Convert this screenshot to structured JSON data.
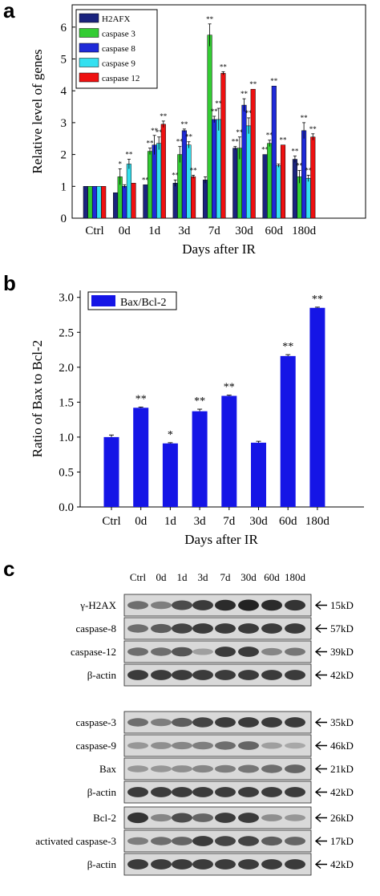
{
  "panel_labels": {
    "a": "a",
    "b": "b",
    "c": "c"
  },
  "chart_data": [
    {
      "type": "bar",
      "xlabel": "Days after IR",
      "ylabel": "Relative level of genes",
      "categories": [
        "Ctrl",
        "0d",
        "1d",
        "3d",
        "7d",
        "30d",
        "60d",
        "180d"
      ],
      "ylim": [
        0,
        6.7
      ],
      "yticks": [
        0,
        1,
        2,
        3,
        4,
        5,
        6
      ],
      "legend_position": "top-left",
      "series": [
        {
          "name": "H2AFX",
          "color": "#1a237e",
          "values": [
            1.0,
            0.8,
            1.05,
            1.1,
            1.2,
            2.2,
            2.0,
            1.85
          ],
          "errors": [
            0,
            0,
            0,
            0.1,
            0.1,
            0.05,
            0,
            0.1
          ],
          "sig": [
            "",
            "",
            "**",
            "**",
            "",
            "**",
            "**",
            "**"
          ]
        },
        {
          "name": "caspase 3",
          "color": "#33cc33",
          "values": [
            1.0,
            1.3,
            2.1,
            2.0,
            5.75,
            2.2,
            2.35,
            1.3
          ],
          "errors": [
            0,
            0.25,
            0.1,
            0.25,
            0.35,
            0.35,
            0.1,
            0.2
          ],
          "sig": [
            "",
            "*",
            "**",
            "**",
            "**",
            "**",
            "**",
            "**"
          ]
        },
        {
          "name": "caspase 8",
          "color": "#1f2ad8",
          "values": [
            1.0,
            1.0,
            2.3,
            2.75,
            3.1,
            3.55,
            4.15,
            2.75
          ],
          "errors": [
            0,
            0.05,
            0.3,
            0.05,
            0.1,
            0.2,
            0,
            0.25
          ],
          "sig": [
            "",
            "",
            "**",
            "**",
            "**",
            "**",
            "**",
            "**"
          ]
        },
        {
          "name": "caspase 9",
          "color": "#33e0f0",
          "values": [
            1.0,
            1.7,
            2.35,
            2.3,
            3.1,
            2.9,
            1.65,
            1.25
          ],
          "errors": [
            0,
            0.15,
            0.2,
            0.1,
            0.35,
            0.25,
            0.05,
            0.1
          ],
          "sig": [
            "",
            "**",
            "**",
            "**",
            "**",
            "**",
            "",
            "**"
          ]
        },
        {
          "name": "caspase 12",
          "color": "#ee1111",
          "values": [
            1.0,
            1.1,
            2.95,
            1.3,
            4.55,
            4.05,
            2.3,
            2.55
          ],
          "errors": [
            0,
            0,
            0.1,
            0.05,
            0.05,
            0,
            0,
            0.1
          ],
          "sig": [
            "",
            "",
            "**",
            "**",
            "**",
            "**",
            "**",
            "**"
          ]
        }
      ]
    },
    {
      "type": "bar",
      "xlabel": "Days after IR",
      "ylabel": "Ratio of Bax to Bcl-2",
      "categories": [
        "Ctrl",
        "0d",
        "1d",
        "3d",
        "7d",
        "30d",
        "60d",
        "180d"
      ],
      "ylim": [
        0,
        3.1
      ],
      "yticks": [
        "0.0",
        "0.5",
        "1.0",
        "1.5",
        "2.0",
        "2.5",
        "3.0"
      ],
      "legend_position": "top-left",
      "series": [
        {
          "name": "Bax/Bcl-2",
          "color": "#1515e6",
          "values": [
            1.0,
            1.42,
            0.91,
            1.37,
            1.59,
            0.92,
            2.16,
            2.85
          ],
          "errors": [
            0.03,
            0.01,
            0.01,
            0.03,
            0.01,
            0.02,
            0.02,
            0.01
          ],
          "sig": [
            "",
            "**",
            "*",
            "**",
            "**",
            "",
            "**",
            "**"
          ]
        }
      ]
    }
  ],
  "blot": {
    "lanes": [
      "Ctrl",
      "0d",
      "1d",
      "3d",
      "7d",
      "30d",
      "60d",
      "180d"
    ],
    "groups": [
      {
        "rows": [
          {
            "label": "γ-H2AX",
            "kd": "15kD",
            "intensity": [
              0.55,
              0.45,
              0.75,
              0.85,
              0.95,
              1.0,
              0.95,
              0.9
            ]
          },
          {
            "label": "caspase-8",
            "kd": "57kD",
            "intensity": [
              0.55,
              0.65,
              0.8,
              0.85,
              0.85,
              0.85,
              0.85,
              0.85
            ]
          },
          {
            "label": "caspase-12",
            "kd": "39kD",
            "intensity": [
              0.55,
              0.55,
              0.7,
              0.25,
              0.85,
              0.85,
              0.4,
              0.5
            ]
          },
          {
            "label": "β-actin",
            "kd": "42kD",
            "intensity": [
              0.85,
              0.85,
              0.85,
              0.85,
              0.85,
              0.85,
              0.85,
              0.85
            ]
          }
        ]
      },
      {
        "rows": [
          {
            "label": "caspase-3",
            "kd": "35kD",
            "intensity": [
              0.55,
              0.45,
              0.65,
              0.8,
              0.85,
              0.85,
              0.85,
              0.85
            ]
          },
          {
            "label": "caspase-9",
            "kd": "46kD",
            "intensity": [
              0.3,
              0.35,
              0.4,
              0.45,
              0.55,
              0.6,
              0.25,
              0.2
            ]
          },
          {
            "label": "Bax",
            "kd": "21kD",
            "intensity": [
              0.3,
              0.3,
              0.35,
              0.4,
              0.45,
              0.5,
              0.55,
              0.6
            ]
          },
          {
            "label": "β-actin",
            "kd": "42kD",
            "intensity": [
              0.85,
              0.85,
              0.85,
              0.85,
              0.85,
              0.85,
              0.85,
              0.85
            ]
          }
        ]
      },
      {
        "rows": [
          {
            "label": "Bcl-2",
            "kd": "26kD",
            "intensity": [
              0.9,
              0.4,
              0.75,
              0.6,
              0.85,
              0.85,
              0.35,
              0.3
            ]
          },
          {
            "label": "activated caspase-3",
            "kd": "17kD",
            "intensity": [
              0.45,
              0.55,
              0.6,
              0.85,
              0.8,
              0.8,
              0.65,
              0.6
            ]
          },
          {
            "label": "β-actin",
            "kd": "42kD",
            "intensity": [
              0.85,
              0.85,
              0.85,
              0.85,
              0.85,
              0.85,
              0.85,
              0.85
            ]
          }
        ]
      }
    ]
  }
}
